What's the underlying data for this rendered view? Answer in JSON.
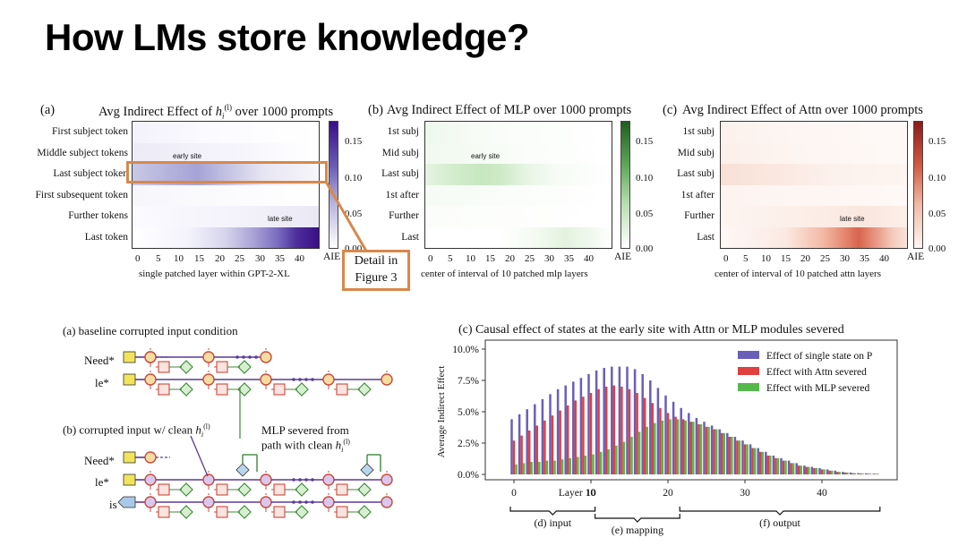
{
  "slide": {
    "title": "How LMs store knowledge?"
  },
  "colors": {
    "accent_orange": "#d8884a",
    "purple": "#5a3a9a",
    "green": "#3f8a3a",
    "red": "#c0392b"
  },
  "top_panels": {
    "a": {
      "label": "(a)",
      "title_pre": "Avg Indirect Effect of ",
      "title_sym": "h",
      "title_sub": "i",
      "title_sup": "(l)",
      "title_post": " over 1000 prompts",
      "rows": [
        "First subject token",
        "Middle subject tokens",
        "Last subject token",
        "First subsequent token",
        "Further tokens",
        "Last token"
      ],
      "xticks": [
        "0",
        "5",
        "10",
        "15",
        "20",
        "25",
        "30",
        "35",
        "40"
      ],
      "xlabel": "single patched layer within GPT-2-XL",
      "cbar_ticks": [
        "0.15",
        "0.10",
        "0.05",
        "0.00"
      ],
      "cbar_label": "AIE",
      "annotations": {
        "early": "early site",
        "late": "late site"
      }
    },
    "b": {
      "label": "(b)",
      "title": "Avg Indirect Effect of MLP over 1000 prompts",
      "rows": [
        "1st subj",
        "Mid subj",
        "Last subj",
        "1st after",
        "Further",
        "Last"
      ],
      "xticks": [
        "0",
        "5",
        "10",
        "15",
        "20",
        "25",
        "30",
        "35",
        "40"
      ],
      "xlabel": "center of interval of 10 patched mlp layers",
      "cbar_ticks": [
        "0.15",
        "0.10",
        "0.05",
        "0.00"
      ],
      "cbar_label": "AIE",
      "annotations": {
        "early": "early site"
      }
    },
    "c": {
      "label": "(c)",
      "title": "Avg Indirect Effect of Attn over 1000 prompts",
      "rows": [
        "1st subj",
        "Mid subj",
        "Last subj",
        "1st after",
        "Further",
        "Last"
      ],
      "xticks": [
        "0",
        "5",
        "10",
        "15",
        "20",
        "25",
        "30",
        "35",
        "40"
      ],
      "xlabel": "center of interval of 10 patched attn layers",
      "cbar_ticks": [
        "0.15",
        "0.10",
        "0.05",
        "0.00"
      ],
      "cbar_label": "AIE",
      "annotations": {
        "late": "late site"
      }
    }
  },
  "callout": {
    "line1": "Detail in",
    "line2": "Figure 3"
  },
  "diagram": {
    "title_a": "(a) baseline corrupted input condition",
    "title_b_pre": "(b) corrupted input w/ clean ",
    "title_b_sym": "h",
    "title_b_sub": "i",
    "title_b_sup": "(l)",
    "severed_line1": "MLP severed from",
    "severed_line2_pre": "path with clean ",
    "tokens_a": [
      "Need*",
      "le*"
    ],
    "tokens_b": [
      "Need*",
      "le*",
      "is"
    ]
  },
  "chart_data": {
    "type": "bar",
    "title": "(c) Causal effect of states at the early site with Attn or MLP modules severed",
    "ylabel": "Average Indirect Effect",
    "yticks": [
      "0.0%",
      "2.5%",
      "5.0%",
      "7.5%",
      "10.0%"
    ],
    "ylim": [
      0,
      10.0
    ],
    "xticks": [
      "0",
      "10",
      "20",
      "30",
      "40"
    ],
    "x_annotation": "Layer 10",
    "x": [
      0,
      1,
      2,
      3,
      4,
      5,
      6,
      7,
      8,
      9,
      10,
      11,
      12,
      13,
      14,
      15,
      16,
      17,
      18,
      19,
      20,
      21,
      22,
      23,
      24,
      25,
      26,
      27,
      28,
      29,
      30,
      31,
      32,
      33,
      34,
      35,
      36,
      37,
      38,
      39,
      40,
      41,
      42,
      43,
      44,
      45,
      46,
      47
    ],
    "series": [
      {
        "name": "Effect of single state on P",
        "color": "#6a5fb8",
        "values": [
          4.4,
          4.8,
          5.2,
          5.6,
          6.0,
          6.4,
          6.8,
          7.1,
          7.4,
          7.7,
          8.0,
          8.3,
          8.5,
          8.6,
          8.6,
          8.6,
          8.4,
          8.0,
          7.5,
          6.9,
          6.3,
          5.8,
          5.3,
          4.9,
          4.5,
          4.2,
          3.9,
          3.6,
          3.3,
          3.0,
          2.7,
          2.4,
          2.1,
          1.8,
          1.5,
          1.3,
          1.1,
          0.9,
          0.7,
          0.6,
          0.5,
          0.4,
          0.3,
          0.2,
          0.15,
          0.1,
          0.08,
          0.06
        ]
      },
      {
        "name": "Effect with Attn severed",
        "color": "#e04040",
        "values": [
          2.7,
          3.1,
          3.5,
          3.9,
          4.3,
          4.7,
          5.1,
          5.5,
          5.9,
          6.2,
          6.5,
          6.8,
          7.0,
          7.1,
          7.0,
          6.8,
          6.5,
          6.1,
          5.7,
          5.3,
          4.9,
          4.6,
          4.4,
          4.2,
          4.0,
          3.8,
          3.6,
          3.3,
          3.0,
          2.7,
          2.4,
          2.1,
          1.8,
          1.5,
          1.3,
          1.1,
          0.9,
          0.7,
          0.6,
          0.5,
          0.4,
          0.3,
          0.2,
          0.15,
          0.1,
          0.08,
          0.06,
          0.05
        ]
      },
      {
        "name": "Effect with MLP severed",
        "color": "#55b84a",
        "values": [
          0.8,
          0.9,
          1.0,
          1.0,
          1.1,
          1.1,
          1.2,
          1.3,
          1.4,
          1.5,
          1.6,
          1.8,
          2.0,
          2.3,
          2.6,
          3.0,
          3.4,
          3.8,
          4.1,
          4.3,
          4.4,
          4.4,
          4.3,
          4.2,
          4.0,
          3.8,
          3.6,
          3.3,
          3.0,
          2.7,
          2.4,
          2.1,
          1.8,
          1.5,
          1.3,
          1.1,
          0.9,
          0.7,
          0.6,
          0.5,
          0.4,
          0.3,
          0.2,
          0.15,
          0.1,
          0.08,
          0.06,
          0.05
        ]
      }
    ],
    "brackets": [
      {
        "label": "(d) input",
        "from": 0,
        "to": 11
      },
      {
        "label": "(e) mapping",
        "from": 11,
        "to": 22
      },
      {
        "label": "(f) output",
        "from": 22,
        "to": 48
      }
    ],
    "legend_position": "top-right",
    "grid": false
  }
}
